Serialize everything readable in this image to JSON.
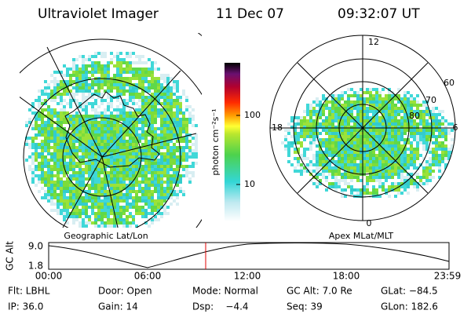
{
  "header": {
    "instrument": "Ultraviolet Imager",
    "date": "11 Dec 07",
    "time": "09:32:07 UT"
  },
  "colorbar": {
    "label": "photon cm⁻²s⁻¹",
    "ticks": [
      "100",
      "10"
    ]
  },
  "left_map": {
    "caption": "Geographic Lat/Lon"
  },
  "right_map": {
    "caption": "Apex MLat/MLT",
    "mlt_labels": [
      "12",
      "18",
      "6",
      "0"
    ],
    "lat_labels": [
      "60",
      "70",
      "80"
    ]
  },
  "altitude_plot": {
    "ylabel": "GC Alt",
    "yticks": [
      "9.0",
      "1.8"
    ],
    "xticks": [
      "00:00",
      "06:00",
      "12:00",
      "18:00",
      "23:59"
    ]
  },
  "footer": {
    "rows": [
      [
        "Flt: LBHL",
        "Door: Open",
        "Mode: Normal",
        "GC Alt: 7.0 Re",
        "GLat: −84.5"
      ],
      [
        "IP: 36.0",
        "Gain: 14",
        "Dsp:    −4.4",
        "Seq: 39",
        "GLon: 182.6"
      ]
    ]
  }
}
